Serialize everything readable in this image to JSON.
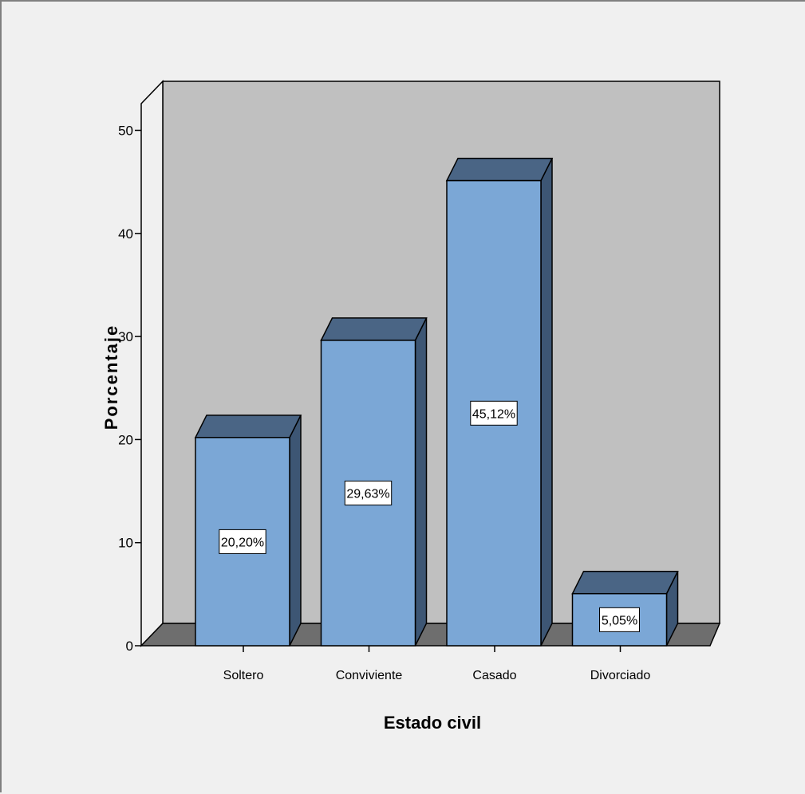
{
  "chart_data": {
    "type": "bar",
    "categories": [
      "Soltero",
      "Conviviente",
      "Casado",
      "Divorciado"
    ],
    "values": [
      20.2,
      29.63,
      45.12,
      5.05
    ],
    "value_labels": [
      "20,20%",
      "29,63%",
      "45,12%",
      "5,05%"
    ],
    "xlabel": "Estado civil",
    "ylabel": "Porcentaje",
    "ylim": [
      0,
      50
    ],
    "yticks": [
      "0",
      "10",
      "20",
      "30",
      "40",
      "50"
    ],
    "style": "3d",
    "grid": false,
    "colors": {
      "bar_front": "#7ba7d6",
      "bar_top": "#4a6585",
      "bar_side": "#3d5674",
      "back_wall": "#c0c0c0",
      "floor": "#6e6e6e",
      "background": "#f0f0f0"
    }
  }
}
